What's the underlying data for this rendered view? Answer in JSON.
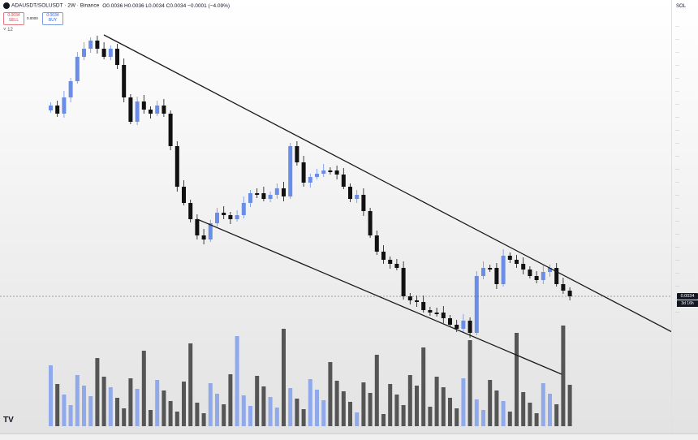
{
  "header": {
    "symbol": "ADAUSDT/SOLUSDT · 2W · Binance",
    "ohlc": "O0.0036 H0.0036 L0.0034 C0.0034 −0.0001 (−4.09%)",
    "sell_price": "0.0034",
    "sell_label": "SELL",
    "spread": "0.0000",
    "buy_price": "0.0034",
    "buy_label": "BUY",
    "collapse_label": "˅ 12"
  },
  "axis": {
    "unit": "SOL",
    "last_price": "0.0034",
    "countdown": "3d 16h",
    "faded_tick_count": 23
  },
  "colors": {
    "up": "#6a8ee8",
    "down": "#111111",
    "vol_up": "#8fa9ea",
    "vol_down": "#555555",
    "trendline": "#1a1a1a"
  },
  "branding": {
    "logo_text": "TV"
  }
}
